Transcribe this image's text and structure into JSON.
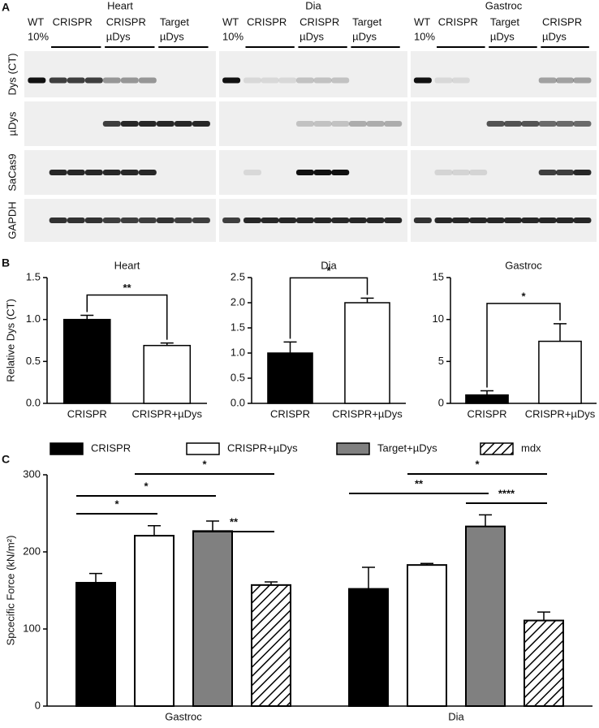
{
  "panel_labels": [
    "A",
    "B",
    "C"
  ],
  "blot": {
    "row_labels": [
      "Dys (CT)",
      "µDys",
      "SaCas9",
      "GAPDH"
    ],
    "sections": [
      {
        "title": "Heart",
        "groups": [
          [
            "WT",
            "10%"
          ],
          [
            "CRISPR"
          ],
          [
            "CRISPR",
            "µDys"
          ],
          [
            "Target",
            "µDys"
          ]
        ]
      },
      {
        "title": "Dia",
        "groups": [
          [
            "WT",
            "10%"
          ],
          [
            "CRISPR"
          ],
          [
            "CRISPR",
            "µDys"
          ],
          [
            "Target",
            "µDys"
          ]
        ]
      },
      {
        "title": "Gastroc",
        "groups": [
          [
            "WT",
            "10%"
          ],
          [
            "CRISPR"
          ],
          [
            "Target",
            "µDys"
          ],
          [
            "CRISPR",
            "µDys"
          ]
        ]
      }
    ]
  },
  "chart_data": [
    {
      "type": "bar",
      "title": "Heart",
      "ylabel": "Relative Dys (CT)",
      "categories": [
        "CRISPR",
        "CRISPR+µDys"
      ],
      "values": [
        1.0,
        0.69
      ],
      "errors": [
        0.05,
        0.03
      ],
      "colors": [
        "#000000",
        "#ffffff"
      ],
      "ylim": [
        0,
        1.5
      ],
      "yticks": [
        {
          "value": 0,
          "label": "0.0"
        },
        0.5,
        {
          "value": 1,
          "label": "1.0"
        },
        1.5
      ],
      "annotations": [
        {
          "text": "**",
          "between": [
            "CRISPR",
            "CRISPR+µDys"
          ]
        }
      ]
    },
    {
      "type": "bar",
      "title": "Dia",
      "categories": [
        "CRISPR",
        "CRISPR+µDys"
      ],
      "values": [
        1.0,
        2.0
      ],
      "errors": [
        0.22,
        0.09
      ],
      "colors": [
        "#000000",
        "#ffffff"
      ],
      "ylim": [
        0,
        2.5
      ],
      "yticks": [
        {
          "value": 0,
          "label": "0.0"
        },
        0.5,
        {
          "value": 1,
          "label": "1.0"
        },
        1.5,
        {
          "value": 2,
          "label": "2.0"
        },
        2.5
      ],
      "annotations": [
        {
          "text": "*",
          "between": [
            "CRISPR",
            "CRISPR+µDys"
          ]
        }
      ]
    },
    {
      "type": "bar",
      "title": "Gastroc",
      "categories": [
        "CRISPR",
        "CRISPR+µDys"
      ],
      "values": [
        1.0,
        7.4
      ],
      "errors": [
        0.5,
        2.1
      ],
      "colors": [
        "#000000",
        "#ffffff"
      ],
      "ylim": [
        0,
        15
      ],
      "yticks": [
        0,
        5,
        10,
        15
      ],
      "annotations": [
        {
          "text": "*",
          "between": [
            "CRISPR",
            "CRISPR+µDys"
          ]
        }
      ]
    },
    {
      "type": "grouped_bar",
      "ylabel": "Spcecific Force (kN/m²)",
      "categories": [
        "Gastroc",
        "Dia"
      ],
      "series": [
        {
          "name": "CRISPR",
          "color": "#000000",
          "values": [
            160,
            152
          ],
          "errors": [
            12,
            28
          ]
        },
        {
          "name": "CRISPR+µDys",
          "color": "#ffffff",
          "values": [
            221,
            183
          ],
          "errors": [
            13,
            2
          ]
        },
        {
          "name": "Target+µDys",
          "color": "#808080",
          "values": [
            227,
            233
          ],
          "errors": [
            13,
            15
          ]
        },
        {
          "name": "mdx",
          "color": "#ffffff",
          "hatch": true,
          "values": [
            157,
            111
          ],
          "errors": [
            4,
            11
          ]
        }
      ],
      "ylim": [
        0,
        300
      ],
      "yticks": [
        0,
        100,
        200,
        300
      ],
      "annotations": [
        {
          "text": "*",
          "category": "Gastroc",
          "between": [
            "CRISPR",
            "CRISPR+µDys"
          ]
        },
        {
          "text": "*",
          "category": "Gastroc",
          "between": [
            "CRISPR",
            "Target+µDys"
          ]
        },
        {
          "text": "*",
          "category": "Gastroc",
          "between": [
            "CRISPR+µDys",
            "mdx"
          ]
        },
        {
          "text": "**",
          "category": "Gastroc",
          "between": [
            "Target+µDys",
            "mdx"
          ]
        },
        {
          "text": "**",
          "category": "Dia",
          "between": [
            "CRISPR",
            "Target+µDys"
          ]
        },
        {
          "text": "*",
          "category": "Dia",
          "between": [
            "CRISPR+µDys",
            "mdx"
          ]
        },
        {
          "text": "****",
          "category": "Dia",
          "between": [
            "Target+µDys",
            "mdx"
          ]
        }
      ]
    }
  ]
}
